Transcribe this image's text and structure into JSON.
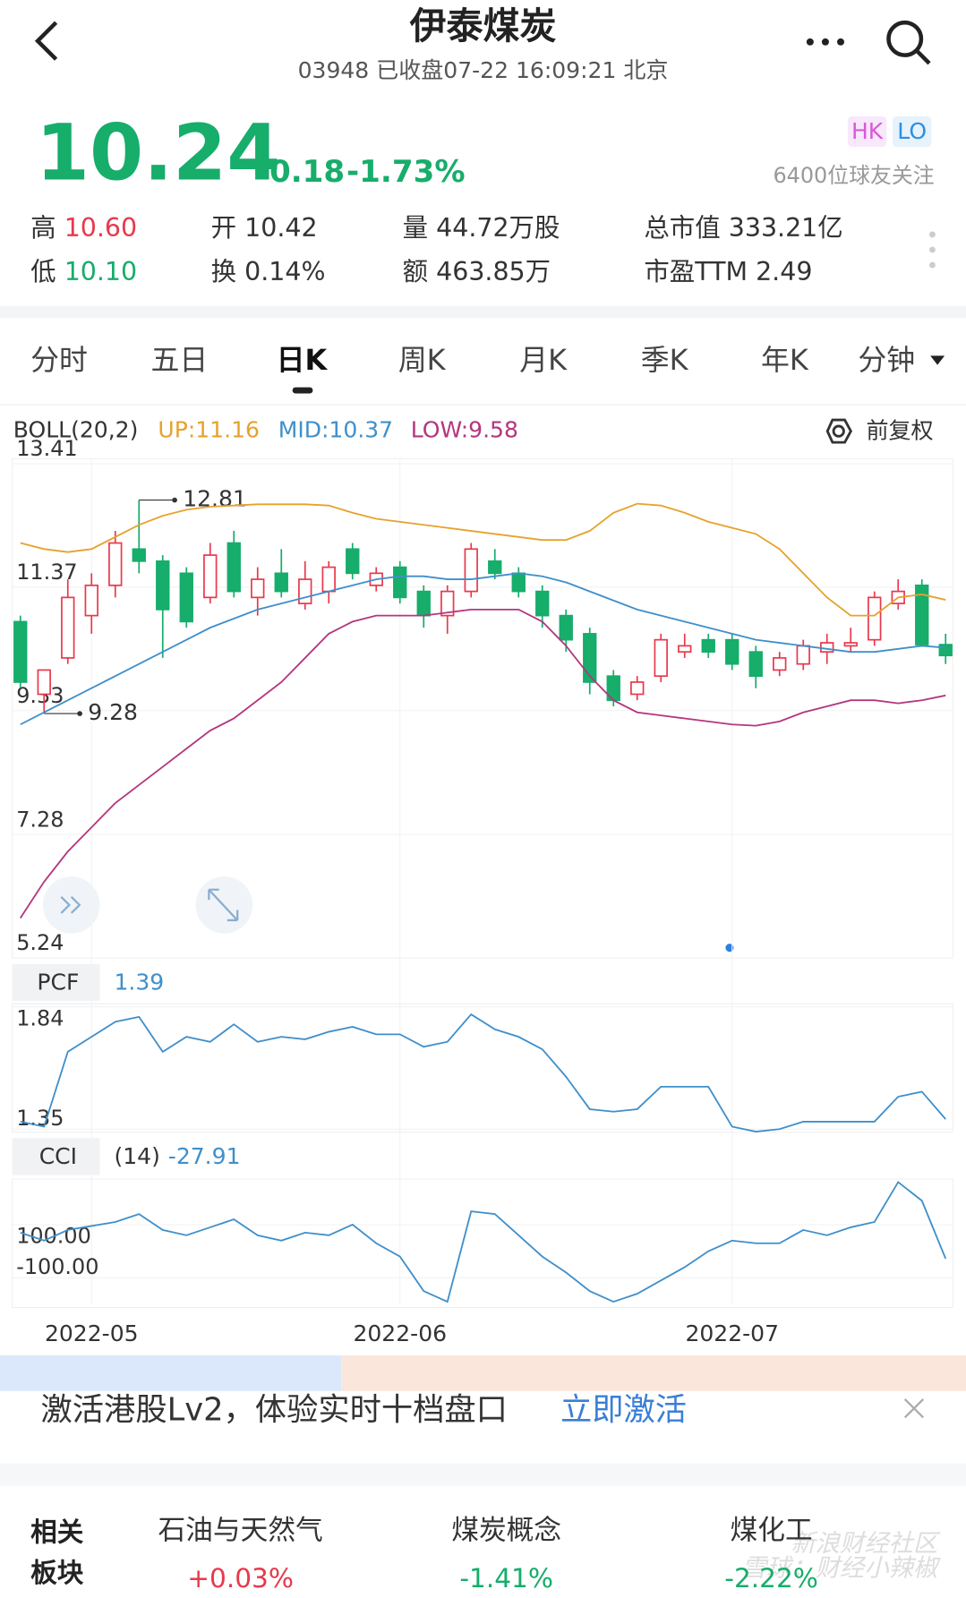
{
  "header": {
    "title": "伊泰煤炭",
    "subtitle": "03948 已收盘07-22 16:09:21 北京",
    "price": "10.24",
    "change": "-0.18",
    "change_pct": "-1.73%",
    "badges": [
      "HK",
      "LO"
    ],
    "followers": "6400位球友关注"
  },
  "stats": [
    {
      "label": "高",
      "value": "10.60"
    },
    {
      "label": "开",
      "value": "10.42"
    },
    {
      "label": "量",
      "value": "44.72万股"
    },
    {
      "label": "总市值",
      "value": "333.21亿"
    },
    {
      "label": "低",
      "value": "10.10"
    },
    {
      "label": "换",
      "value": "0.14%"
    },
    {
      "label": "额",
      "value": "463.85万"
    },
    {
      "label": "市盈TTM",
      "value": "2.49"
    }
  ],
  "tabs": [
    "分时",
    "五日",
    "日K",
    "周K",
    "月K",
    "季K",
    "年K",
    "分钟"
  ],
  "adjust": "前复权",
  "chart_data": [
    {
      "type": "candlestick",
      "indicator": "BOLL(20,2)",
      "categories": [
        null,
        null,
        null,
        "2022-05",
        null,
        null,
        null,
        null,
        null,
        null,
        null,
        null,
        null,
        null,
        null,
        null,
        "2022-06",
        null,
        null,
        null,
        null,
        null,
        null,
        null,
        null,
        null,
        null,
        null,
        null,
        null,
        "2022-07",
        null,
        null,
        null,
        null,
        null,
        null,
        null,
        null,
        null
      ],
      "candles": [
        [
          10.8,
          10.9,
          9.7,
          9.8
        ],
        [
          9.6,
          10.0,
          9.28,
          10.0
        ],
        [
          10.2,
          11.5,
          10.1,
          11.2
        ],
        [
          10.9,
          11.6,
          10.6,
          11.4
        ],
        [
          11.4,
          12.3,
          11.2,
          12.1
        ],
        [
          12.0,
          12.81,
          11.6,
          11.8
        ],
        [
          11.8,
          11.9,
          10.2,
          11.0
        ],
        [
          11.6,
          11.7,
          10.7,
          10.8
        ],
        [
          11.2,
          12.1,
          11.1,
          11.9
        ],
        [
          12.1,
          12.3,
          11.2,
          11.3
        ],
        [
          11.2,
          11.7,
          10.9,
          11.5
        ],
        [
          11.6,
          12.0,
          11.2,
          11.3
        ],
        [
          11.1,
          11.8,
          11.0,
          11.5
        ],
        [
          11.3,
          11.8,
          11.1,
          11.7
        ],
        [
          12.0,
          12.1,
          11.5,
          11.6
        ],
        [
          11.4,
          11.7,
          11.3,
          11.6
        ],
        [
          11.7,
          11.8,
          11.1,
          11.2
        ],
        [
          11.3,
          11.4,
          10.7,
          10.9
        ],
        [
          10.9,
          11.4,
          10.6,
          11.3
        ],
        [
          11.3,
          12.1,
          11.2,
          12.0
        ],
        [
          11.8,
          12.0,
          11.5,
          11.6
        ],
        [
          11.6,
          11.7,
          11.2,
          11.3
        ],
        [
          11.3,
          11.4,
          10.7,
          10.9
        ],
        [
          10.9,
          11.0,
          10.3,
          10.5
        ],
        [
          10.6,
          10.7,
          9.6,
          9.8
        ],
        [
          9.9,
          10.0,
          9.4,
          9.5
        ],
        [
          9.6,
          9.9,
          9.5,
          9.8
        ],
        [
          9.9,
          10.6,
          9.8,
          10.5
        ],
        [
          10.3,
          10.6,
          10.2,
          10.4
        ],
        [
          10.5,
          10.6,
          10.2,
          10.3
        ],
        [
          10.5,
          10.6,
          10.0,
          10.1
        ],
        [
          10.3,
          10.4,
          9.7,
          9.9
        ],
        [
          10.0,
          10.3,
          9.9,
          10.2
        ],
        [
          10.1,
          10.5,
          10.0,
          10.4
        ],
        [
          10.3,
          10.6,
          10.1,
          10.45
        ],
        [
          10.4,
          10.7,
          10.3,
          10.45
        ],
        [
          10.5,
          11.3,
          10.4,
          11.2
        ],
        [
          11.1,
          11.5,
          11.0,
          11.3
        ],
        [
          11.4,
          11.5,
          10.4,
          10.42
        ],
        [
          10.42,
          10.6,
          10.1,
          10.24
        ]
      ],
      "up_color": "#e8394c",
      "down_color": "#17ad6b",
      "annotations": [
        {
          "text": "12.81",
          "value": 12.81,
          "index": 5
        },
        {
          "text": "9.28",
          "value": 9.28,
          "index": 1
        }
      ],
      "series": [
        {
          "name": "UP:11.16",
          "color": "#e6a22c",
          "values": [
            12.1,
            12.0,
            11.95,
            12.0,
            12.2,
            12.4,
            12.55,
            12.65,
            12.7,
            12.72,
            12.74,
            12.74,
            12.74,
            12.72,
            12.6,
            12.5,
            12.45,
            12.4,
            12.35,
            12.3,
            12.25,
            12.2,
            12.15,
            12.15,
            12.3,
            12.6,
            12.75,
            12.72,
            12.6,
            12.45,
            12.35,
            12.25,
            12.0,
            11.6,
            11.2,
            10.9,
            10.9,
            11.2,
            11.25,
            11.16
          ]
        },
        {
          "name": "MID:10.37",
          "color": "#3f8fcb",
          "values": [
            9.1,
            9.3,
            9.5,
            9.7,
            9.9,
            10.1,
            10.3,
            10.5,
            10.7,
            10.85,
            11.0,
            11.1,
            11.2,
            11.3,
            11.4,
            11.5,
            11.55,
            11.55,
            11.5,
            11.5,
            11.55,
            11.6,
            11.55,
            11.45,
            11.3,
            11.15,
            11.0,
            10.9,
            10.8,
            10.7,
            10.6,
            10.5,
            10.45,
            10.4,
            10.35,
            10.3,
            10.3,
            10.35,
            10.4,
            10.37
          ]
        },
        {
          "name": "LOW:9.58",
          "color": "#b3367f",
          "values": [
            5.9,
            6.5,
            7.0,
            7.4,
            7.8,
            8.1,
            8.4,
            8.7,
            9.0,
            9.2,
            9.5,
            9.8,
            10.2,
            10.6,
            10.8,
            10.9,
            10.9,
            10.9,
            10.95,
            11.0,
            11.0,
            11.0,
            10.8,
            10.4,
            9.9,
            9.5,
            9.3,
            9.25,
            9.2,
            9.15,
            9.1,
            9.08,
            9.15,
            9.3,
            9.4,
            9.5,
            9.5,
            9.45,
            9.5,
            9.58
          ]
        }
      ],
      "ylim": [
        5.24,
        13.41
      ],
      "yticks": [
        {
          "value": 13.41,
          "label": "13.41"
        },
        {
          "value": 11.37,
          "label": "11.37"
        },
        {
          "value": 9.33,
          "label": "9.33"
        },
        {
          "value": 7.28,
          "label": "7.28"
        },
        {
          "value": 5.24,
          "label": "5.24"
        }
      ]
    },
    {
      "type": "line",
      "name": "PCF",
      "current": 1.39,
      "color": "#3f8fcb",
      "values": [
        1.38,
        1.36,
        1.66,
        1.72,
        1.78,
        1.8,
        1.66,
        1.72,
        1.7,
        1.77,
        1.7,
        1.72,
        1.71,
        1.74,
        1.76,
        1.73,
        1.73,
        1.68,
        1.7,
        1.81,
        1.75,
        1.72,
        1.67,
        1.56,
        1.43,
        1.42,
        1.43,
        1.52,
        1.52,
        1.52,
        1.36,
        1.34,
        1.35,
        1.38,
        1.38,
        1.38,
        1.38,
        1.48,
        1.5,
        1.39
      ],
      "ylim": [
        1.35,
        1.84
      ],
      "yticks": [
        1.84,
        1.35
      ]
    },
    {
      "type": "line",
      "name": "CCI",
      "period": "(14)",
      "current": -27.91,
      "color": "#3f8fcb",
      "values": [
        70,
        40,
        80,
        95,
        110,
        140,
        80,
        60,
        90,
        120,
        60,
        40,
        70,
        60,
        100,
        30,
        -20,
        -150,
        -190,
        150,
        140,
        60,
        -20,
        -80,
        -150,
        -190,
        -160,
        -110,
        -60,
        0,
        40,
        30,
        30,
        80,
        60,
        90,
        110,
        260,
        190,
        -27.91
      ],
      "ylim": [
        -200,
        260
      ],
      "yticks": [
        {
          "value": 100,
          "label": "100.00"
        },
        {
          "value": -100,
          "label": "-100.00"
        }
      ]
    }
  ],
  "banner": {
    "text": "激活港股Lv2，体验实时十档盘口",
    "action": "立即激活"
  },
  "related": {
    "title": [
      "相关",
      "板块"
    ],
    "sectors": [
      {
        "name": "石油与天然气",
        "change": "+0.03%"
      },
      {
        "name": "煤炭概念",
        "change": "-1.41%"
      },
      {
        "name": "煤化工",
        "change": "-2.22%"
      }
    ]
  },
  "watermark": [
    "新浪财经社区",
    "雪球：财经小辣椒"
  ]
}
